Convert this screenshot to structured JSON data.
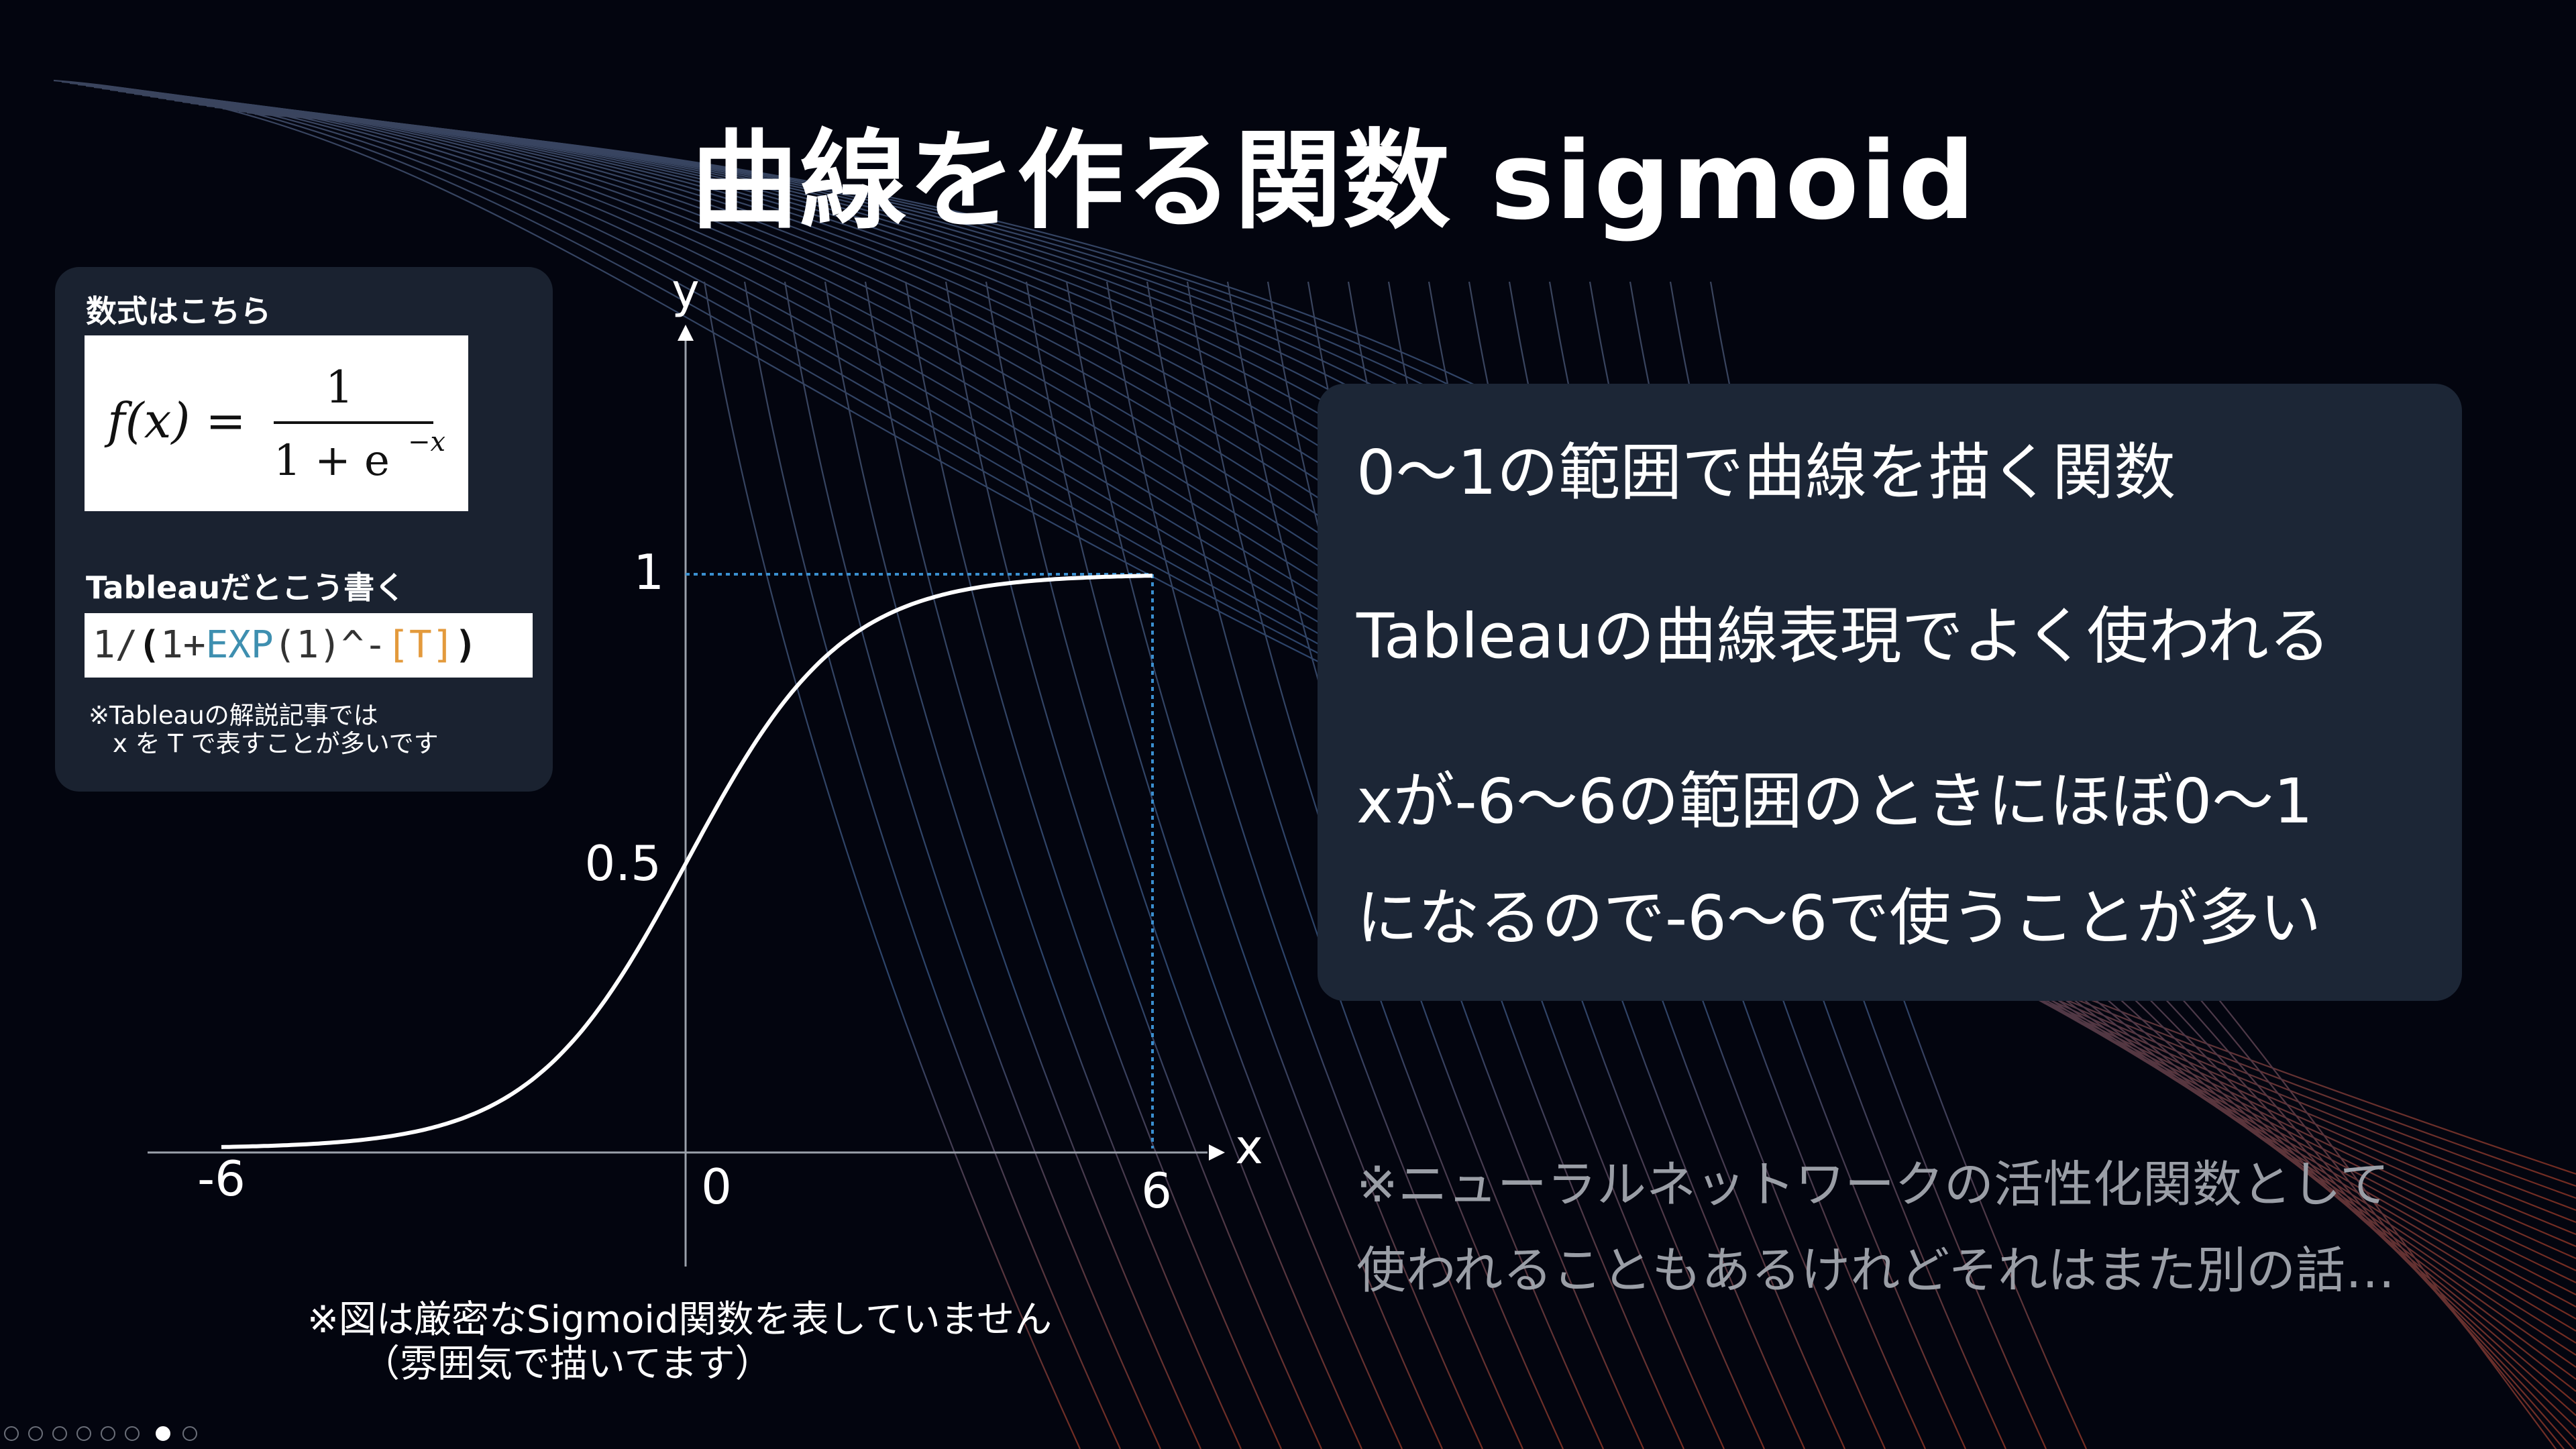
{
  "title": "曲線を作る関数 sigmoid",
  "left_card": {
    "formula_label": "数式はこちら",
    "formula": {
      "lhs": "f(x) =",
      "numerator": "1",
      "denominator": "1 + e",
      "exponent": "−x"
    },
    "tableau_label": "Tableauだとこう書く",
    "code": {
      "part1": "1/",
      "paren_open": "(",
      "part2": "1+",
      "func": "EXP",
      "part3": "(1)^-",
      "field": "[T]",
      "paren_close": ")"
    },
    "note_line1": "※Tableauの解説記事では",
    "note_line2": "x を T で表すことが多いです"
  },
  "chart_data": {
    "type": "line",
    "function": "sigmoid",
    "x_axis_label": "x",
    "y_axis_label": "y",
    "x_ticks": [
      "-6",
      "0",
      "6"
    ],
    "y_ticks": [
      "1",
      "0.5"
    ],
    "x_range": [
      -6,
      6
    ],
    "y_range": [
      0,
      1
    ],
    "guide_lines": "dotted lines at y=1 and x=6",
    "curve_color": "#ffffff",
    "guide_color": "#3a8fd0"
  },
  "right_card": {
    "line1": "0〜1の範囲で曲線を描く関数",
    "line2": "Tableauの曲線表現でよく使われる",
    "line3": "xが-6〜6の範囲のときにほぼ0〜1",
    "line4": "になるので-6〜6で使うことが多い"
  },
  "side_note": {
    "line1": "※ニューラルネットワークの活性化関数として",
    "line2": "使われることもあるけれどそれはまた別の話…"
  },
  "bottom_note": {
    "line1": "※図は厳密なSigmoid関数を表していません",
    "line2": "（雰囲気で描いてます）"
  },
  "toolbar": {
    "icons": [
      "prev-icon",
      "next-icon",
      "pen-icon",
      "slides-icon",
      "zoom-icon",
      "subtitle-icon",
      "pointer-icon",
      "more-icon"
    ]
  }
}
